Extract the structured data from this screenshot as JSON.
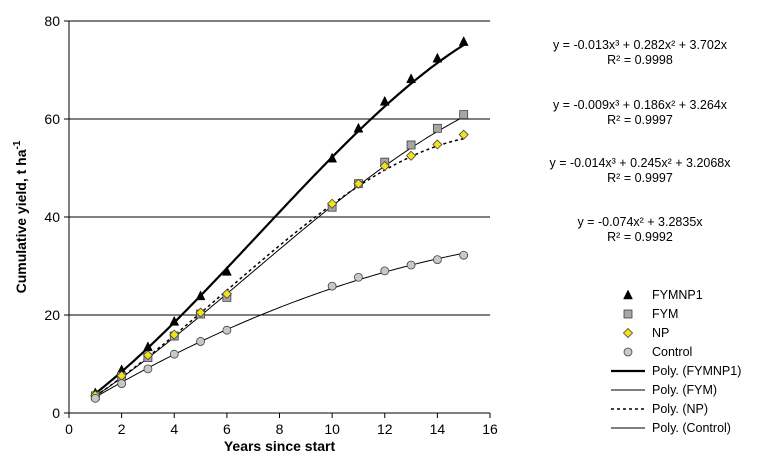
{
  "chart_data": {
    "type": "scatter",
    "title": "",
    "xlabel": "Years since start",
    "ylabel_main": "Cumulative yield, t ha",
    "ylabel_sup": "-1",
    "xlim": [
      0,
      16
    ],
    "ylim": [
      0,
      80
    ],
    "xticks": [
      "0",
      "2",
      "4",
      "6",
      "8",
      "10",
      "12",
      "14",
      "16"
    ],
    "yticks": [
      "0",
      "20",
      "40",
      "60",
      "80"
    ],
    "grid": "horizontal",
    "legend_position": "right",
    "series": [
      {
        "name": "FYMNP1",
        "marker": "triangle",
        "color": "#000000",
        "x": [
          1,
          2,
          3,
          4,
          5,
          6,
          10,
          11,
          12,
          13,
          14,
          15
        ],
        "y": [
          4.1,
          8.8,
          13.5,
          18.7,
          23.9,
          28.9,
          52.0,
          58.1,
          63.6,
          68.2,
          72.4,
          75.8
        ],
        "fit": {
          "a3": -0.013,
          "a2": 0.282,
          "a1": 3.702,
          "a0": 0
        },
        "fit_name": "Poly. (FYMNP1)",
        "fit_style": "thick"
      },
      {
        "name": "FYM",
        "marker": "square",
        "color": "#a6a6a6",
        "x": [
          1,
          2,
          3,
          4,
          5,
          6,
          10,
          11,
          12,
          13,
          14,
          15
        ],
        "y": [
          3.5,
          7.5,
          11.3,
          15.7,
          20.2,
          23.6,
          42.0,
          46.8,
          51.2,
          54.7,
          58.1,
          60.9
        ],
        "fit": {
          "a3": -0.009,
          "a2": 0.186,
          "a1": 3.264,
          "a0": 0
        },
        "fit_name": "Poly. (FYM)",
        "fit_style": "thin"
      },
      {
        "name": "NP",
        "marker": "diamond",
        "color": "#f2e21a",
        "x": [
          1,
          2,
          3,
          4,
          5,
          6,
          10,
          11,
          12,
          13,
          14,
          15
        ],
        "y": [
          3.6,
          7.6,
          11.8,
          16.0,
          20.5,
          24.3,
          42.7,
          46.8,
          50.4,
          52.5,
          54.8,
          56.8
        ],
        "fit": {
          "a3": -0.014,
          "a2": 0.245,
          "a1": 3.2068,
          "a0": 0
        },
        "fit_name": "Poly. (NP)",
        "fit_style": "dashed"
      },
      {
        "name": "Control",
        "marker": "circle",
        "color": "#c8c8c8",
        "x": [
          1,
          2,
          3,
          4,
          5,
          6,
          10,
          11,
          12,
          13,
          14,
          15
        ],
        "y": [
          3.0,
          6.0,
          9.0,
          12.0,
          14.6,
          16.9,
          25.9,
          27.7,
          29.0,
          30.2,
          31.3,
          32.2
        ],
        "fit": {
          "a3": 0,
          "a2": -0.074,
          "a1": 3.2835,
          "a0": 0
        },
        "fit_name": "Poly. (Control)",
        "fit_style": "thin"
      }
    ],
    "equations": [
      {
        "eq": "y = -0.013x³ + 0.282x² + 3.702x",
        "r2": "R² = 0.9998"
      },
      {
        "eq": "y = -0.009x³ + 0.186x² + 3.264x",
        "r2": "R² = 0.9997"
      },
      {
        "eq": "y = -0.014x³ + 0.245x² + 3.2068x",
        "r2": "R² = 0.9997"
      },
      {
        "eq": "y = -0.074x² + 3.2835x",
        "r2": "R² = 0.9992"
      }
    ]
  }
}
